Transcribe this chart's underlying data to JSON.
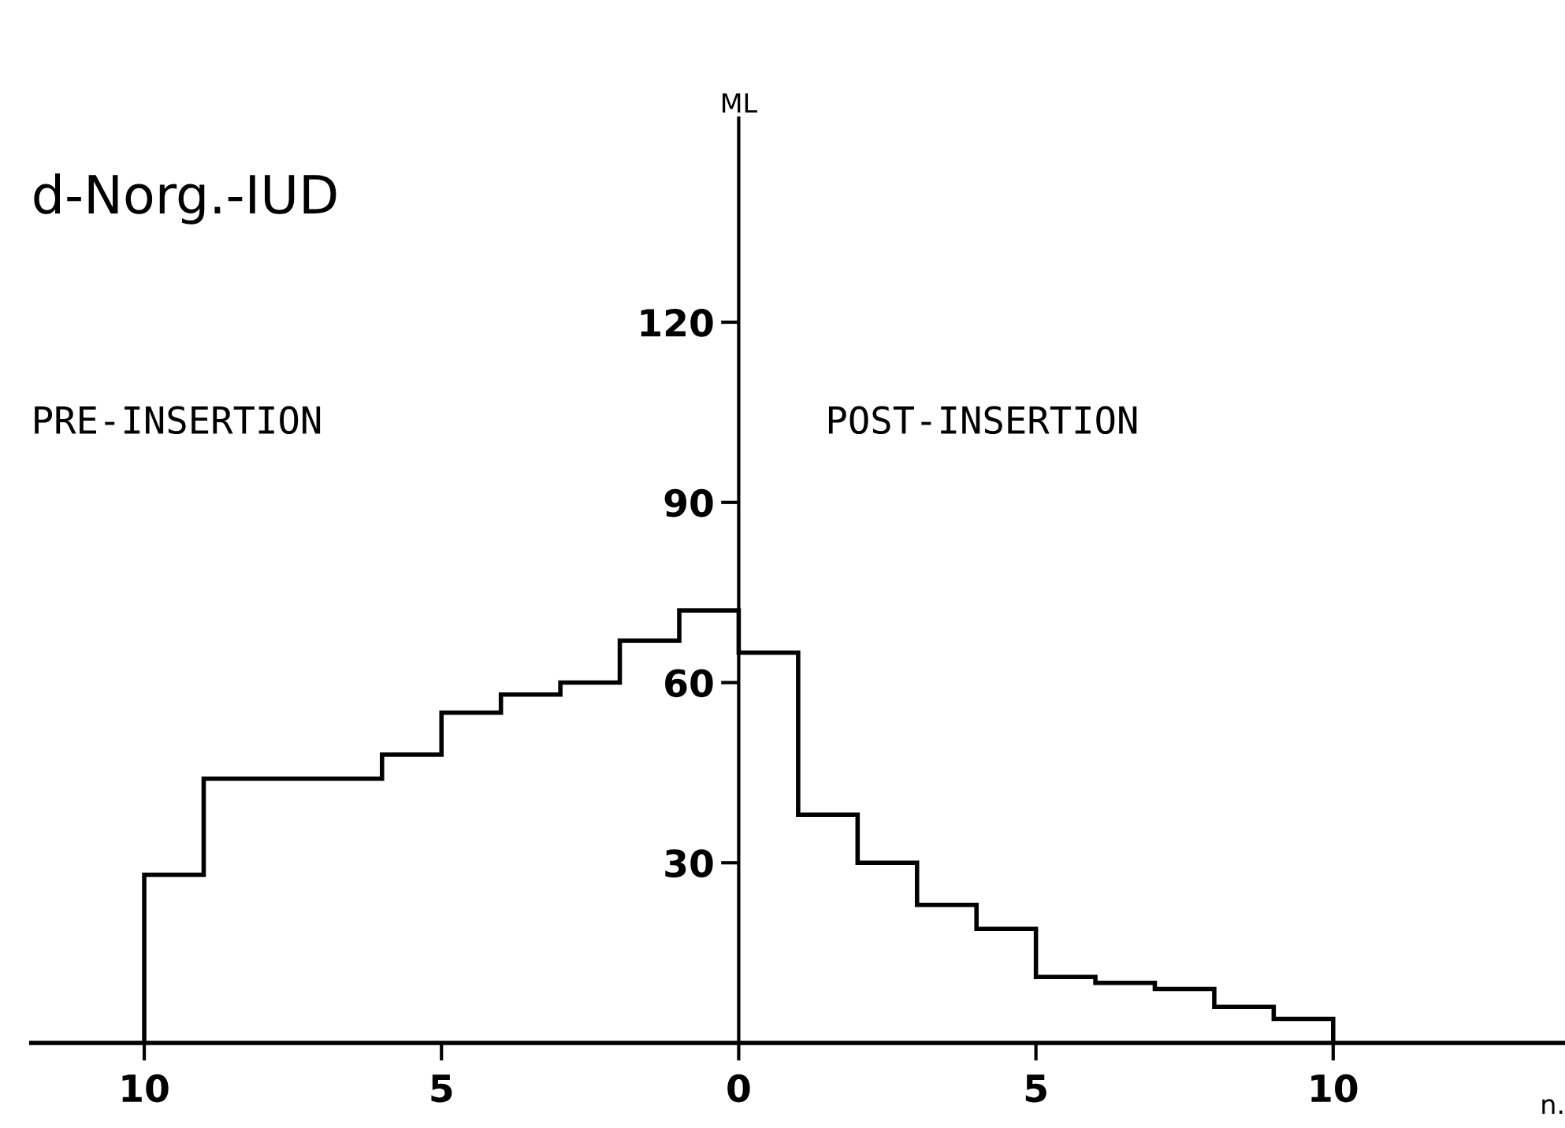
{
  "chart_data": {
    "type": "histogram",
    "title": "d-Norg.-IUD",
    "xlabel": "n.",
    "ylabel": "ML",
    "annotations": [
      "PRE-INSERTION",
      "POST-INSERTION"
    ],
    "bins": [
      -10,
      -9,
      -8,
      -7,
      -6,
      -5,
      -4,
      -3,
      -2,
      -1,
      0,
      1,
      2,
      3,
      4,
      5,
      6,
      7,
      8,
      9,
      10
    ],
    "values": [
      28,
      44,
      44,
      44,
      48,
      55,
      58,
      60,
      67,
      72,
      65,
      38,
      30,
      23,
      19,
      11,
      10,
      9,
      6,
      4
    ],
    "color": "#000000",
    "xlim": [
      -11.9,
      13.9
    ],
    "ylim": [
      0,
      154
    ],
    "xticks": [
      {
        "value": -10,
        "label": "10"
      },
      {
        "value": -5,
        "label": "5"
      },
      0,
      5,
      10
    ],
    "yticks": [
      30,
      60,
      90,
      120
    ],
    "grid": false,
    "legend": false
  }
}
